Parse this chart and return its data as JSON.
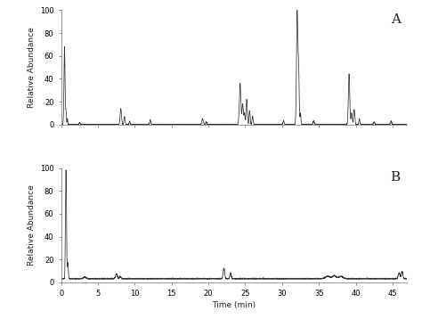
{
  "background_color": "#f0f0f0",
  "line_color": "#333333",
  "label_color": "#222222",
  "ylabel": "Relative Abundance",
  "xlabel": "Time (min)",
  "xlim": [
    0,
    47
  ],
  "ylim_A": [
    0,
    100
  ],
  "ylim_B": [
    0,
    100
  ],
  "yticks": [
    0,
    20,
    40,
    60,
    80,
    100
  ],
  "xticks": [
    0,
    5,
    10,
    15,
    20,
    25,
    30,
    35,
    40,
    45
  ],
  "label_A": "A",
  "label_B": "B",
  "seed": 42
}
